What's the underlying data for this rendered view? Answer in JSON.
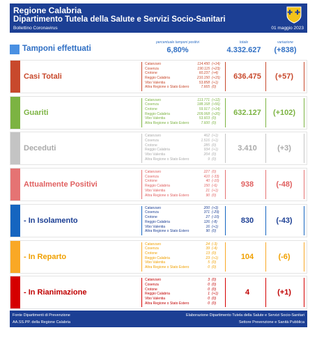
{
  "header": {
    "region": "Regione Calabria",
    "department": "Dipartimento Tutela della Salute e Servizi Socio-Sanitari",
    "bulletin": "Bollettino Coronavirus",
    "date": "01 maggio 2023"
  },
  "tamponi": {
    "label": "Tamponi effettuati",
    "percent_label": "percentuale tamponi positivi",
    "percent": "6,80%",
    "total_label": "totale",
    "total": "4.332.627",
    "change_label": "variazione",
    "change": "(+838)"
  },
  "sections": [
    {
      "label": "Casi Totali",
      "total": "636.475",
      "change": "(+57)",
      "rows": [
        [
          "Catanzaro",
          "114.450",
          "(+14)"
        ],
        [
          "Cosenza",
          "190.115",
          "(+23)"
        ],
        [
          "Crotone",
          "60.237",
          "(+4)"
        ],
        [
          "Reggio Calabria",
          "210.150",
          "(+15)"
        ],
        [
          "Vibo Valentia",
          "53.858",
          "(+1)"
        ],
        [
          "Altra Regione o Stato Estero",
          "7.665",
          "(0)"
        ]
      ]
    },
    {
      "label": "Guariti",
      "total": "632.127",
      "change": "(+102)",
      "rows": [
        [
          "Catanzaro",
          "113.771",
          "(+12)"
        ],
        [
          "Cosenza",
          "188.168",
          "(+56)"
        ],
        [
          "Crotone",
          "59.917",
          "(+14)"
        ],
        [
          "Reggio Calabria",
          "209.068",
          "(+20)"
        ],
        [
          "Vibo Valentia",
          "53.603",
          "(0)"
        ],
        [
          "Altra Regione o Stato Estero",
          "7.600",
          "(0)"
        ]
      ]
    },
    {
      "label": "Deceduti",
      "total": "3.410",
      "change": "(+3)",
      "rows": [
        [
          "Catanzaro",
          "462",
          "(+1)"
        ],
        [
          "Cosenza",
          "1.516",
          "(+1)"
        ],
        [
          "Crotone",
          "285",
          "(0)"
        ],
        [
          "Reggio Calabria",
          "934",
          "(+1)"
        ],
        [
          "Vibo Valentia",
          "204",
          "(0)"
        ],
        [
          "Altra Regione o Stato Estero",
          "9",
          "(0)"
        ]
      ]
    },
    {
      "label": "Attualmente Positivi",
      "total": "938",
      "change": "(-48)",
      "rows": [
        [
          "Catanzaro",
          "227",
          "(0)"
        ],
        [
          "Cosenza",
          "410",
          "(-33)"
        ],
        [
          "Crotone",
          "40",
          "(-10)"
        ],
        [
          "Reggio Calabria",
          "150",
          "(-6)"
        ],
        [
          "Vibo Valentia",
          "21",
          "(+1)"
        ],
        [
          "Altra Regione o Stato Estero",
          "90",
          "(0)"
        ]
      ]
    },
    {
      "label": "- In Isolamento",
      "total": "830",
      "change": "(-43)",
      "rows": [
        [
          "Catanzaro",
          "200",
          "(+3)"
        ],
        [
          "Cosenza",
          "371",
          "(-29)"
        ],
        [
          "Crotone",
          "27",
          "(-10)"
        ],
        [
          "Reggio Calabria",
          "126",
          "(-8)"
        ],
        [
          "Vibo Valentia",
          "16",
          "(+1)"
        ],
        [
          "Altra Regione o Stato Estero",
          "90",
          "(0)"
        ]
      ]
    },
    {
      "label": "- In Reparto",
      "total": "104",
      "change": "(-6)",
      "rows": [
        [
          "Catanzaro",
          "24",
          "(-3)"
        ],
        [
          "Cosenza",
          "39",
          "(-4)"
        ],
        [
          "Crotone",
          "13",
          "(0)"
        ],
        [
          "Reggio Calabria",
          "23",
          "(+1)"
        ],
        [
          "Vibo Valentia",
          "5",
          "(0)"
        ],
        [
          "Altra Regione o Stato Estero",
          "0",
          "(0)"
        ]
      ]
    },
    {
      "label": "- In Rianimazione",
      "total": "4",
      "change": "(+1)",
      "rows": [
        [
          "Catanzaro",
          "3",
          "(0)"
        ],
        [
          "Cosenza",
          "0",
          "(0)"
        ],
        [
          "Crotone",
          "0",
          "(0)"
        ],
        [
          "Reggio Calabria",
          "1",
          "(+1)"
        ],
        [
          "Vibo Valentia",
          "0",
          "(0)"
        ],
        [
          "Altra Regione o Stato Estero",
          "0",
          "(0)"
        ]
      ]
    }
  ],
  "footer": {
    "left1": "Fonte Dipartimenti di Prevenzione",
    "left2": "AA.SS.PP. della Regione Calabria",
    "right1": "Elaborazione Dipartimento Tutela della Salute e Servizi Socio-Sanitari",
    "right2": "Settore Prevenzione e Sanità Pubblica"
  }
}
